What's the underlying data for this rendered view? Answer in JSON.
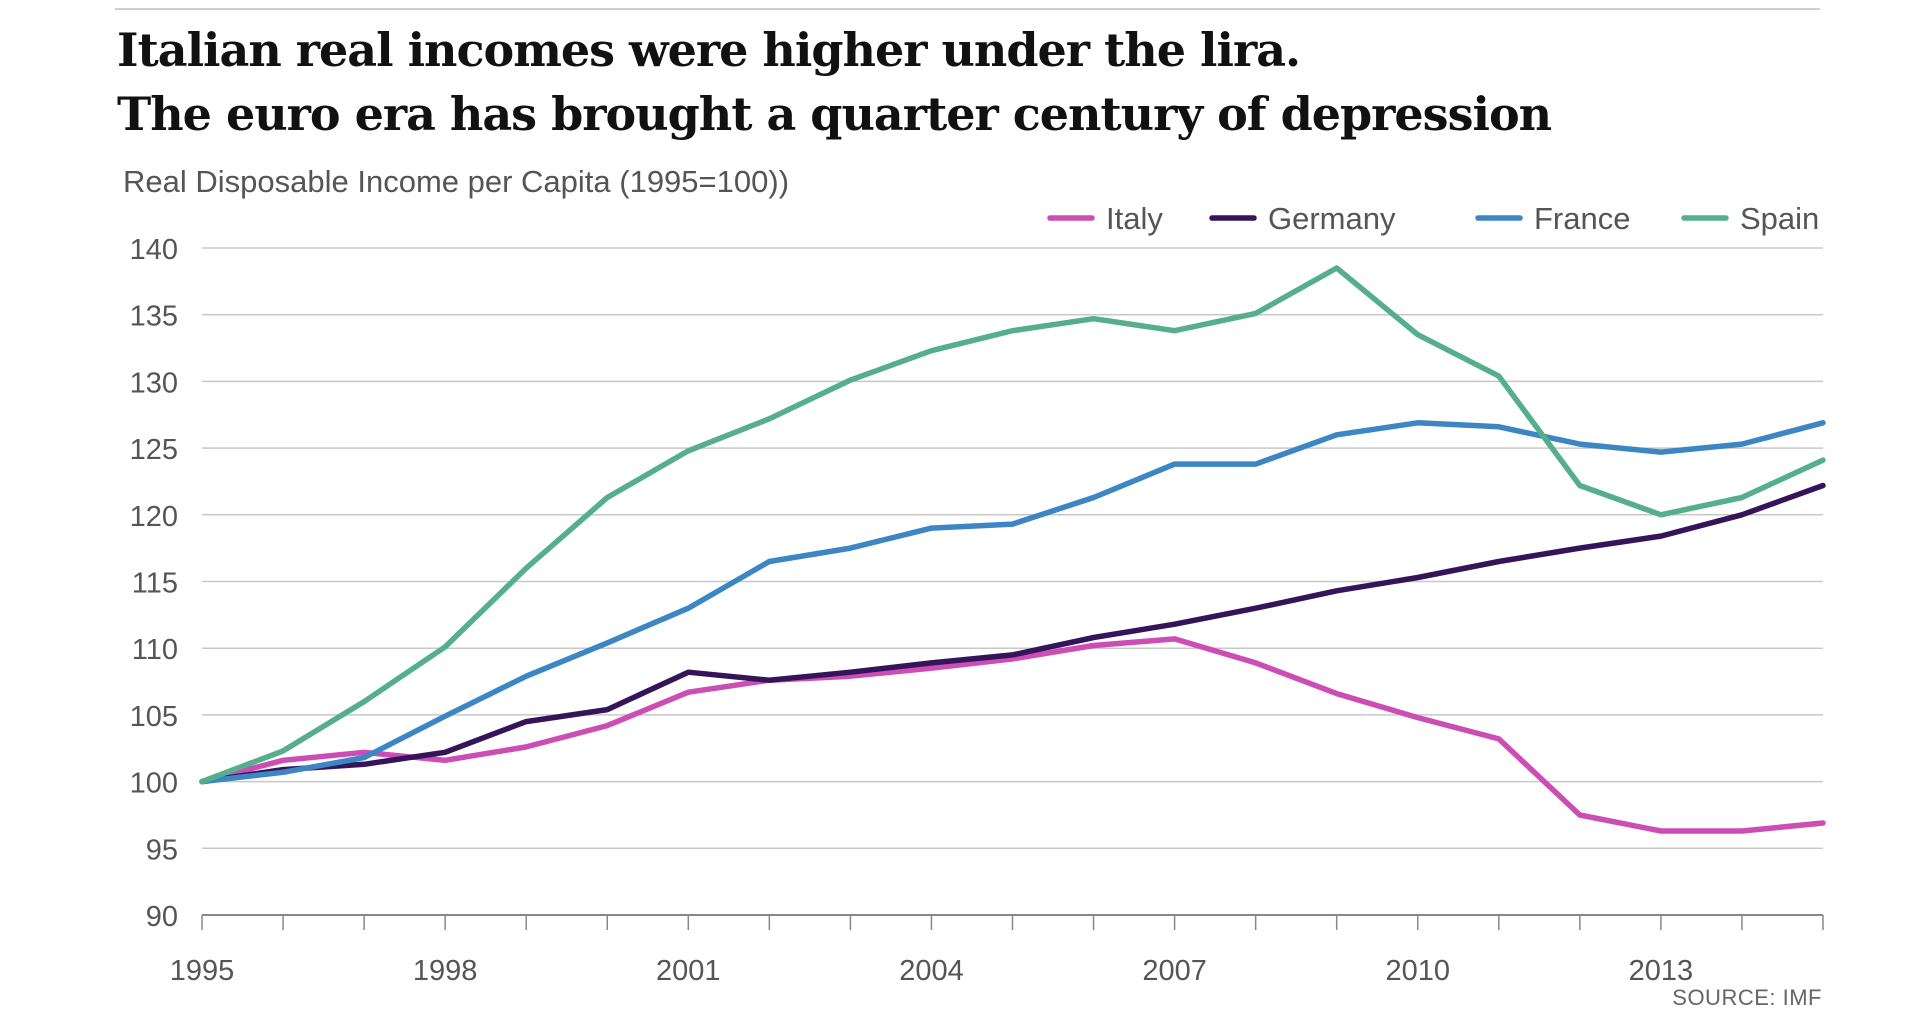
{
  "header": {
    "title_line1": "Italian real incomes were higher under the lira.",
    "title_line2": "The euro era has brought a quarter century of depression",
    "subtitle": "Real Disposable Income per Capita (1995=100))"
  },
  "footer": {
    "source": "SOURCE: IMF"
  },
  "chart_data": {
    "type": "line",
    "title": "Italian real incomes were higher under the lira. The euro era has brought a quarter century of depression",
    "subtitle": "Real Disposable Income per Capita (1995=100))",
    "xlabel": "",
    "ylabel": "",
    "x": [
      1995,
      1996,
      1997,
      1998,
      1999,
      2000,
      2001,
      2002,
      2003,
      2004,
      2005,
      2006,
      2007,
      2008,
      2009,
      2010,
      2011,
      2012,
      2013,
      2014,
      2015
    ],
    "xticks": [
      "1995",
      "1998",
      "2001",
      "2004",
      "2007",
      "2010",
      "2013"
    ],
    "xtick_years": [
      1995,
      1998,
      2001,
      2004,
      2007,
      2010,
      2013
    ],
    "xlim": [
      1995,
      2015
    ],
    "ylim": [
      90,
      140
    ],
    "yticks": [
      "140",
      "135",
      "130",
      "125",
      "120",
      "115",
      "110",
      "105",
      "100",
      "95",
      "90"
    ],
    "grid": "horizontal",
    "legend_position": "top-right",
    "series": [
      {
        "name": "Italy",
        "color": "#cc4db3",
        "values": [
          100,
          101.6,
          102.2,
          101.6,
          102.6,
          104.2,
          106.7,
          107.6,
          107.9,
          108.5,
          109.2,
          110.2,
          110.7,
          108.9,
          106.6,
          104.8,
          103.2,
          97.5,
          96.3,
          96.3,
          96.9
        ]
      },
      {
        "name": "Germany",
        "color": "#35145a",
        "values": [
          100,
          100.9,
          101.3,
          102.2,
          104.5,
          105.4,
          108.2,
          107.6,
          108.2,
          108.9,
          109.5,
          110.8,
          111.8,
          113.0,
          114.3,
          115.3,
          116.5,
          117.5,
          118.4,
          120.0,
          122.2
        ]
      },
      {
        "name": "France",
        "color": "#3b86c3",
        "values": [
          100,
          100.7,
          101.8,
          104.9,
          107.9,
          110.4,
          113.0,
          116.5,
          117.5,
          119.0,
          119.3,
          121.3,
          123.8,
          123.8,
          126.0,
          126.9,
          126.6,
          125.3,
          124.7,
          125.3,
          126.9
        ]
      },
      {
        "name": "Spain",
        "color": "#55ae8c",
        "values": [
          100,
          102.3,
          106.0,
          110.1,
          116.0,
          121.3,
          124.8,
          127.2,
          130.1,
          132.3,
          133.8,
          134.7,
          133.8,
          135.1,
          138.5,
          133.5,
          130.4,
          122.2,
          120.0,
          121.3,
          124.1
        ]
      }
    ]
  }
}
